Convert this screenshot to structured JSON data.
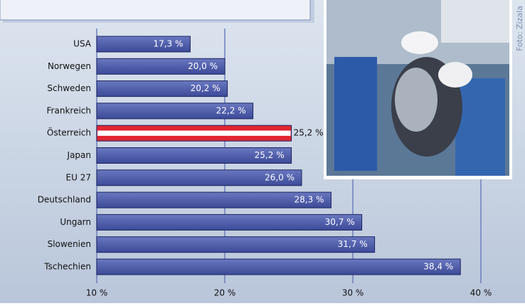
{
  "chart_data": {
    "type": "barh",
    "categories": [
      "USA",
      "Norwegen",
      "Schweden",
      "Frankreich",
      "Österreich",
      "Japan",
      "EU 27",
      "Deutschland",
      "Ungarn",
      "Slowenien",
      "Tschechien"
    ],
    "values": [
      17.3,
      20.0,
      20.2,
      22.2,
      25.2,
      25.2,
      26.0,
      28.3,
      30.7,
      31.7,
      38.4
    ],
    "value_labels": [
      "17,3 %",
      "20,0 %",
      "20,2 %",
      "22,2 %",
      "25,2 %",
      "25,2 %",
      "26,0 %",
      "28,3 %",
      "30,7 %",
      "31,7 %",
      "38,4 %"
    ],
    "colors": [
      "#4a58a6",
      "#4a58a6",
      "#4a58a6",
      "#4a58a6",
      "#e02530",
      "#4a58a6",
      "#4a58a6",
      "#4a58a6",
      "#4a58a6",
      "#4a58a6",
      "#4a58a6"
    ],
    "xlim": [
      10,
      40
    ],
    "xticks": [
      {
        "value": 10,
        "label": "10 %"
      },
      {
        "value": 20,
        "label": "20 %"
      },
      {
        "value": 30,
        "label": "30 %"
      },
      {
        "value": 40,
        "label": "40 %"
      }
    ],
    "grid": true,
    "photo_credit": "Foto: Zizala"
  }
}
